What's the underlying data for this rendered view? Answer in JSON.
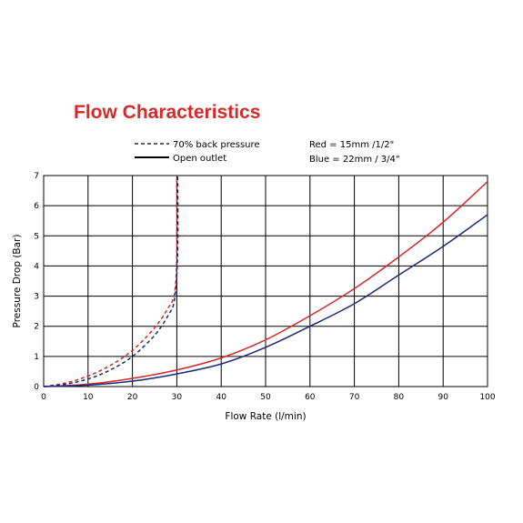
{
  "chart_data": {
    "type": "line",
    "title": "Flow Characteristics",
    "xlabel": "Flow Rate (l/min)",
    "ylabel": "Pressure Drop (Bar)",
    "xlim": [
      0,
      100
    ],
    "ylim": [
      0,
      7
    ],
    "xticks": [
      0,
      10,
      20,
      30,
      40,
      50,
      60,
      70,
      80,
      90,
      100
    ],
    "yticks": [
      0,
      1,
      2,
      3,
      4,
      5,
      6,
      7
    ],
    "grid": true,
    "legend": {
      "line_style": [
        {
          "label": "70% back pressure",
          "style": "dashed"
        },
        {
          "label": "Open outlet",
          "style": "solid"
        }
      ],
      "colors": [
        {
          "label": "Red = 15mm /1/2\"",
          "color": "#d42a2a"
        },
        {
          "label": "Blue = 22mm / 3/4\"",
          "color": "#1b2a78"
        }
      ]
    },
    "series": [
      {
        "line": "open",
        "color": "#d42a2a",
        "style": "solid",
        "x": [
          0,
          10,
          20,
          30,
          40,
          50,
          60,
          70,
          80,
          90,
          100
        ],
        "y": [
          0,
          0.08,
          0.27,
          0.55,
          0.95,
          1.55,
          2.35,
          3.25,
          4.3,
          5.45,
          6.8
        ]
      },
      {
        "line": "open",
        "color": "#1b2a78",
        "style": "solid",
        "x": [
          0,
          10,
          20,
          30,
          40,
          50,
          60,
          70,
          80,
          90,
          100
        ],
        "y": [
          0,
          0.05,
          0.18,
          0.42,
          0.75,
          1.3,
          2.0,
          2.75,
          3.7,
          4.65,
          5.7
        ]
      },
      {
        "line": "back-pressure",
        "color": "#d42a2a",
        "style": "dashed",
        "x": [
          0,
          5,
          10,
          15,
          20,
          25,
          28,
          29.5,
          30,
          30
        ],
        "y": [
          0,
          0.12,
          0.35,
          0.7,
          1.2,
          1.95,
          2.6,
          3.1,
          4.5,
          7.0
        ]
      },
      {
        "line": "back-pressure",
        "color": "#1b2a78",
        "style": "dashed",
        "x": [
          0,
          5,
          10,
          15,
          20,
          25,
          28,
          29.5,
          30.2,
          30.2
        ],
        "y": [
          0,
          0.08,
          0.25,
          0.55,
          1.0,
          1.7,
          2.35,
          2.9,
          4.5,
          7.0
        ]
      }
    ]
  }
}
